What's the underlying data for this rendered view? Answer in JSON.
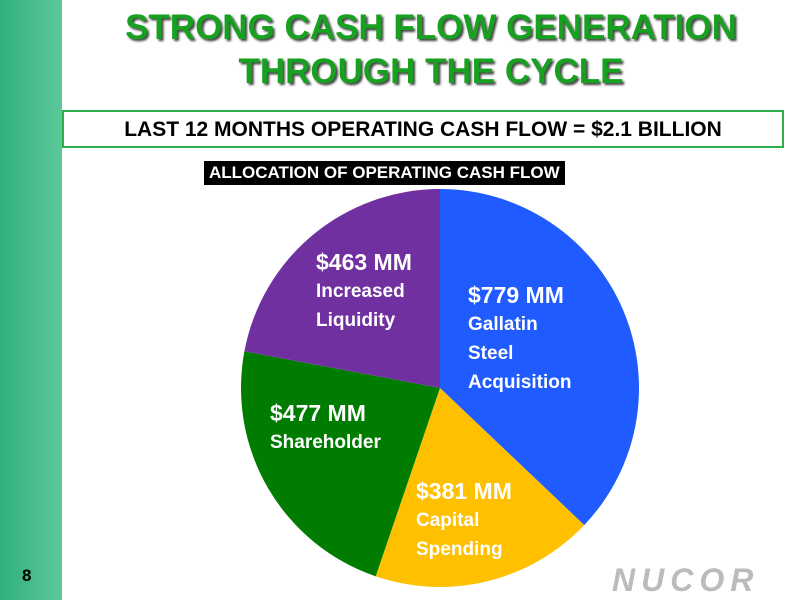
{
  "slide": {
    "title": "STRONG CASH FLOW GENERATION\nTHROUGH THE CYCLE",
    "subtitle": "LAST 12 MONTHS OPERATING CASH FLOW = $2.1 BILLION",
    "page_number": "8",
    "logo": "NUCOR"
  },
  "chart_data": {
    "type": "pie",
    "title": "ALLOCATION OF OPERATING CASH FLOW",
    "categories": [
      "Gallatin\nSteel\nAcquisition",
      "Capital\nSpending",
      "Shareholder",
      "Increased\nLiquidity"
    ],
    "values": [
      779,
      381,
      477,
      463
    ],
    "value_labels": [
      "$779 MM",
      "$381 MM",
      "$477 MM",
      "$463 MM"
    ],
    "colors": [
      "#1f5bff",
      "#ffc000",
      "#007d00",
      "#7030a0"
    ]
  }
}
